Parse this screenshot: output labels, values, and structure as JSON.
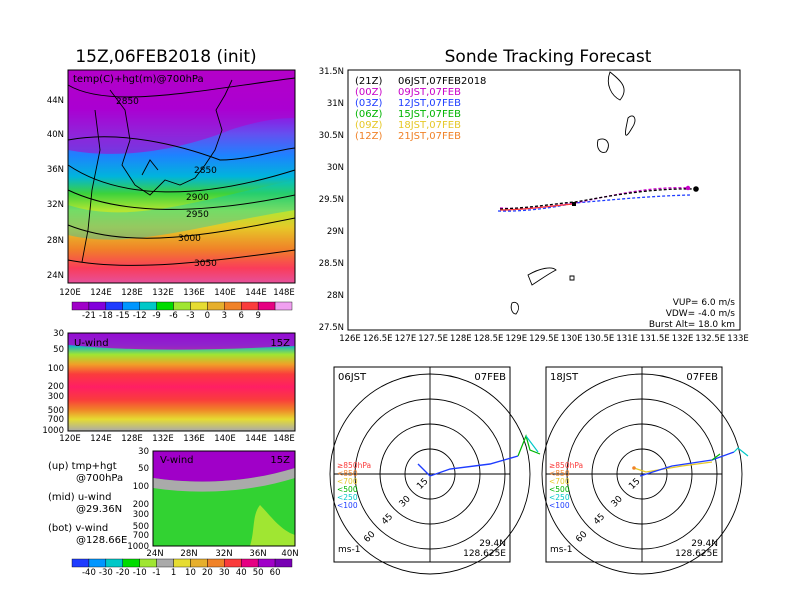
{
  "left_title": "15Z,06FEB2018 (init)",
  "right_title": "Sonde Tracking Forecast",
  "map_panel": {
    "label": "temp(C)+hgt(m)@700hPa",
    "lat_ticks": [
      "44N",
      "40N",
      "36N",
      "32N",
      "28N",
      "24N"
    ],
    "lon_ticks": [
      "120E",
      "124E",
      "128E",
      "132E",
      "136E",
      "140E",
      "144E",
      "148E"
    ],
    "contour_labels": [
      "2850",
      "2850",
      "2900",
      "2950",
      "3000",
      "3050"
    ]
  },
  "temp_colorbar": {
    "labels": [
      "-21",
      "-18",
      "-15",
      "-12",
      "-9",
      "-6",
      "-3",
      "0",
      "3",
      "6",
      "9"
    ],
    "colors": [
      "#a000c8",
      "#8200dc",
      "#1e3cff",
      "#0096ff",
      "#00c8c8",
      "#00dc00",
      "#a0e632",
      "#e6dc32",
      "#e6af2d",
      "#f08228",
      "#fa3c3c",
      "#e60082",
      "#f0a0f0"
    ]
  },
  "u_panel": {
    "label": "U-wind",
    "time": "15Z",
    "p_ticks": [
      "30",
      "50",
      "100",
      "200",
      "300",
      "500",
      "700",
      "1000"
    ],
    "lon_ticks": [
      "120E",
      "124E",
      "128E",
      "132E",
      "136E",
      "140E",
      "144E",
      "148E"
    ]
  },
  "v_panel": {
    "label": "V-wind",
    "time": "15Z",
    "p_ticks": [
      "30",
      "50",
      "100",
      "200",
      "300",
      "500",
      "700",
      "1000"
    ],
    "lat_ticks": [
      "24N",
      "28N",
      "32N",
      "36N",
      "40N"
    ]
  },
  "notes": [
    {
      "a": "(up)  tmp+hgt",
      "b": "@700hPa"
    },
    {
      "a": "(mid)  u-wind",
      "b": "@29.36N"
    },
    {
      "a": "(bot)  v-wind",
      "b": "@128.66E"
    }
  ],
  "wind_colorbar": {
    "labels": [
      "-40",
      "-30",
      "-20",
      "-10",
      "-1",
      "1",
      "10",
      "20",
      "30",
      "40",
      "50",
      "60"
    ],
    "colors": [
      "#1e3cff",
      "#0096ff",
      "#00c8c8",
      "#00dc00",
      "#a0e632",
      "#aaaaaa",
      "#e6dc32",
      "#e6af2d",
      "#f08228",
      "#fa3c3c",
      "#e60082",
      "#a000c8",
      "#7800b4"
    ]
  },
  "track": {
    "legend": [
      {
        "code": "(21Z)",
        "time": "06JST,07FEB2018",
        "color": "#000000"
      },
      {
        "code": "(00Z)",
        "time": "09JST,07FEB",
        "color": "#c800c8"
      },
      {
        "code": "(03Z)",
        "time": "12JST,07FEB",
        "color": "#1e3cff"
      },
      {
        "code": "(06Z)",
        "time": "15JST,07FEB",
        "color": "#00b400"
      },
      {
        "code": "(09Z)",
        "time": "18JST,07FEB",
        "color": "#e6c828"
      },
      {
        "code": "(12Z)",
        "time": "21JST,07FEB",
        "color": "#f08228"
      }
    ],
    "lat_ticks": [
      "31.5N",
      "31N",
      "30.5N",
      "30N",
      "29.5N",
      "29N",
      "28.5N",
      "28N",
      "27.5N"
    ],
    "lon_ticks": [
      "126E",
      "126.5E",
      "127E",
      "127.5E",
      "128E",
      "128.5E",
      "129E",
      "129.5E",
      "130E",
      "130.5E",
      "131E",
      "131.5E",
      "132E",
      "132.5E",
      "133E"
    ],
    "params": [
      "VUP=  6.0  m/s",
      "VDW= -4.0  m/s",
      "Burst Alt=  18.0  km"
    ]
  },
  "hodographs": [
    {
      "time": "06JST",
      "date": "07FEB",
      "lat": "29.4N",
      "lon": "128.625E",
      "unit": "ms-1",
      "rings": [
        "15",
        "30",
        "45",
        "60"
      ]
    },
    {
      "time": "18JST",
      "date": "07FEB",
      "lat": "29.4N",
      "lon": "128.625E",
      "unit": "ms-1",
      "rings": [
        "15",
        "30",
        "45",
        "60"
      ]
    }
  ],
  "hodo_legend": [
    {
      "text": "≥850hPa",
      "color": "#fa3c3c"
    },
    {
      "text": "<850",
      "color": "#f08228"
    },
    {
      "text": "<700",
      "color": "#e6c828"
    },
    {
      "text": "<500",
      "color": "#00b400"
    },
    {
      "text": "<250",
      "color": "#00c8c8"
    },
    {
      "text": "<100",
      "color": "#1e3cff"
    }
  ]
}
